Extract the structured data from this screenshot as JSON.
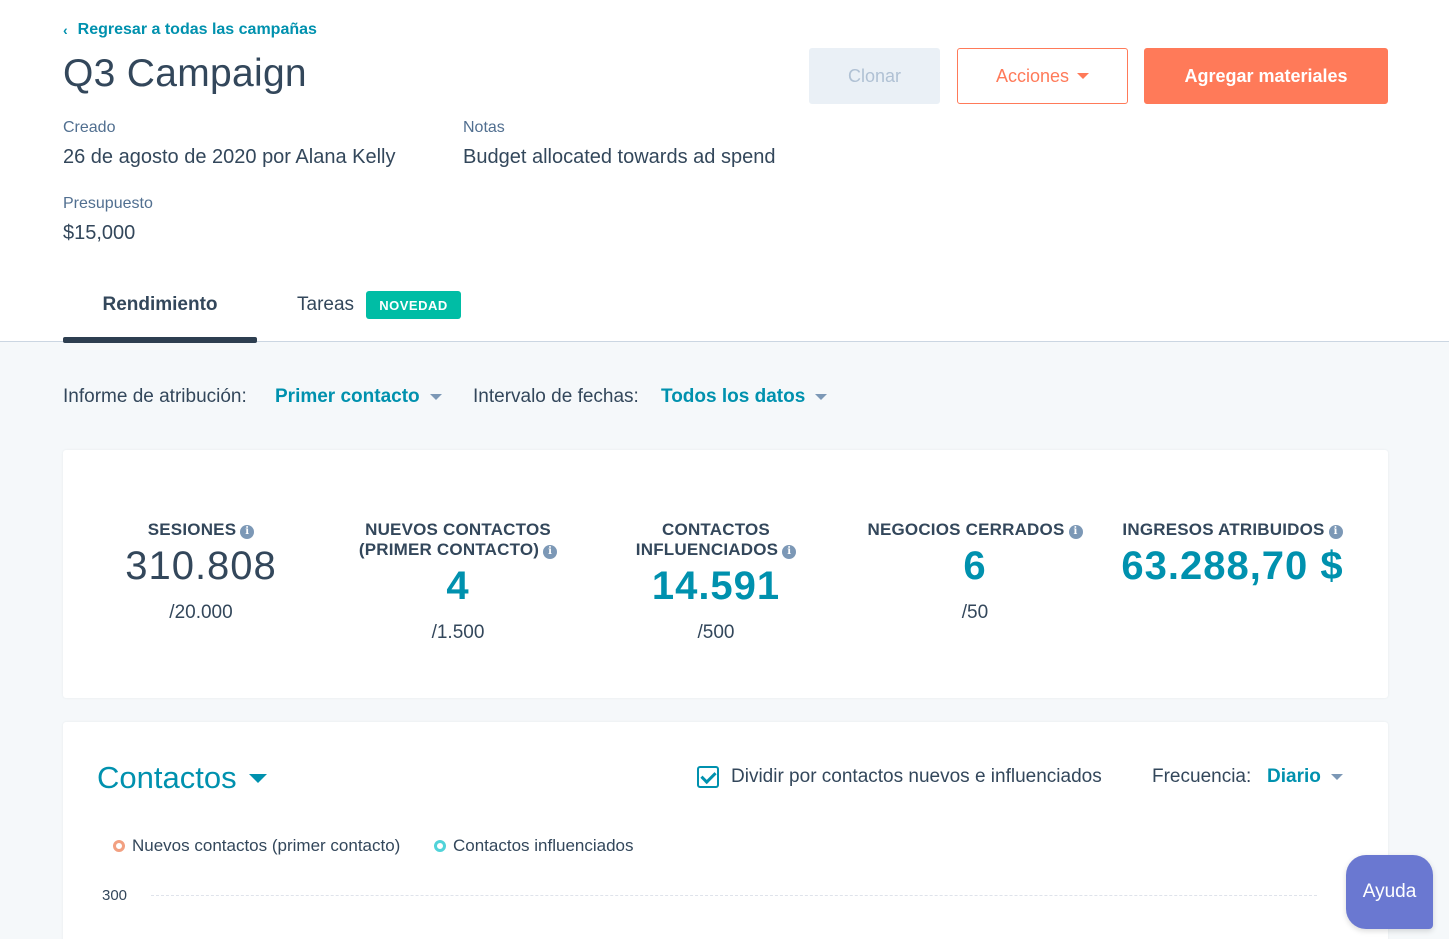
{
  "header": {
    "back_link": "Regresar a todas las campañas",
    "title": "Q3 Campaign",
    "buttons": {
      "clone": "Clonar",
      "actions": "Acciones",
      "add": "Agregar materiales"
    }
  },
  "meta": {
    "created_label": "Creado",
    "created_value": "26 de agosto de 2020 por Alana Kelly",
    "notes_label": "Notas",
    "notes_value": "Budget allocated towards ad spend",
    "budget_label": "Presupuesto",
    "budget_value": "$15,000"
  },
  "tabs": {
    "performance": "Rendimiento",
    "tasks": "Tareas",
    "new_badge": "NOVEDAD"
  },
  "filters": {
    "attribution_label": "Informe de atribución:",
    "attribution_value": "Primer contacto",
    "date_label": "Intervalo de fechas:",
    "date_value": "Todos los datos"
  },
  "kpis": [
    {
      "label_line1": "SESIONES",
      "label_line2": "",
      "value": "310.808",
      "goal": "/20.000"
    },
    {
      "label_line1": "NUEVOS CONTACTOS",
      "label_line2": "(PRIMER CONTACTO)",
      "value": "4",
      "goal": "/1.500"
    },
    {
      "label_line1": "CONTACTOS",
      "label_line2": "INFLUENCIADOS",
      "value": "14.591",
      "goal": "/500"
    },
    {
      "label_line1": "NEGOCIOS CERRADOS",
      "label_line2": "",
      "value": "6",
      "goal": "/50"
    },
    {
      "label_line1": "INGRESOS ATRIBUIDOS",
      "label_line2": "",
      "value": "63.288,70 $",
      "goal": ""
    }
  ],
  "chart_section": {
    "title": "Contactos",
    "split_checkbox_label": "Dividir por contactos nuevos e influenciados",
    "split_checked": true,
    "frequency_label": "Frecuencia:",
    "frequency_value": "Diario",
    "legend": [
      {
        "name": "Nuevos contactos (primer contacto)",
        "color": "#f2a081"
      },
      {
        "name": "Contactos influenciados",
        "color": "#51d3d9"
      }
    ],
    "y_tick": "300"
  },
  "help_button": "Ayuda",
  "colors": {
    "accent": "#ff7a59",
    "link": "#0091ae",
    "badge": "#00bda5",
    "help": "#6a78d1"
  }
}
